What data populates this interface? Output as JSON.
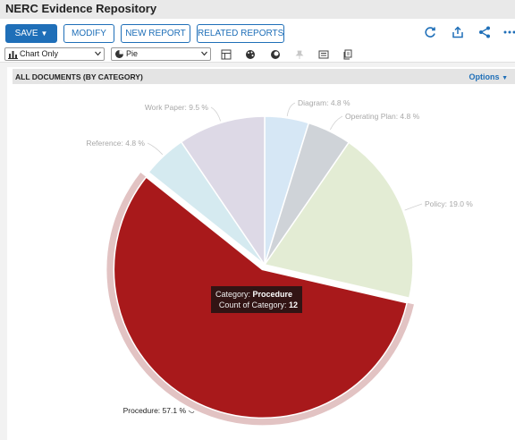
{
  "app": {
    "title": "NERC Evidence Repository"
  },
  "toolbar": {
    "save_label": "SAVE",
    "modify_label": "MODIFY",
    "new_report_label": "NEW REPORT",
    "related_reports_label": "RELATED REPORTS",
    "icons": [
      "refresh-icon",
      "share-upload-icon",
      "share-icon",
      "more-icon"
    ]
  },
  "controls": {
    "view_select": {
      "value": "Chart Only",
      "icon": "bar-chart-icon"
    },
    "chart_type_select": {
      "value": "Pie",
      "icon": "pie-chart-icon"
    },
    "icons": [
      "data-table-icon",
      "palette-icon",
      "contrast-icon",
      "pin-icon",
      "legend-icon",
      "copy-icon"
    ]
  },
  "section": {
    "title": "ALL DOCUMENTS (BY CATEGORY)",
    "options_label": "Options"
  },
  "tooltip": {
    "category_label": "Category:",
    "category_value": "Procedure",
    "count_label": "Count of Category:",
    "count_value": "12"
  },
  "chart_data": {
    "type": "pie",
    "slices": [
      {
        "label": "Diagram",
        "percent": 4.8,
        "text": "Diagram: 4.8 %",
        "color": "#d6e7f5"
      },
      {
        "label": "Operating Plan",
        "percent": 4.8,
        "text": "Operating Plan: 4.8 %",
        "color": "#cfd3d8"
      },
      {
        "label": "Policy",
        "percent": 19.0,
        "text": "Policy: 19.0 %",
        "color": "#e3ecd4"
      },
      {
        "label": "Procedure",
        "percent": 57.1,
        "count": 12,
        "text": "Procedure: 57.1 %",
        "color": "#a8191b",
        "highlighted": true
      },
      {
        "label": "Reference",
        "percent": 4.8,
        "text": "Reference: 4.8 %",
        "color": "#d5eaf0"
      },
      {
        "label": "Work Paper",
        "percent": 9.5,
        "text": "Work Paper: 9.5 %",
        "color": "#ddd9e6"
      }
    ]
  }
}
